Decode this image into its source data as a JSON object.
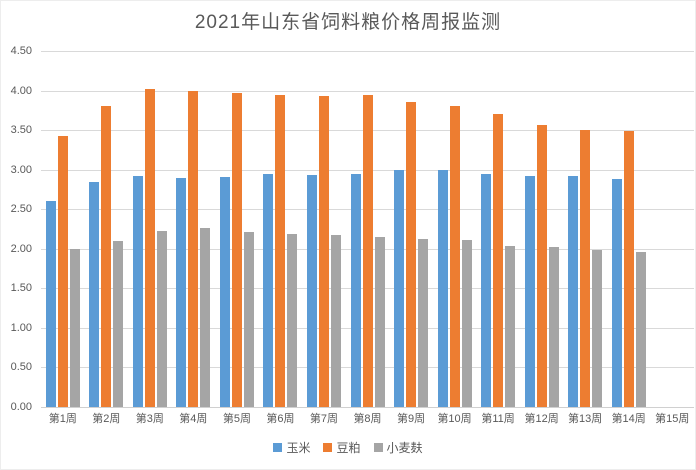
{
  "title": "2021年山东省饲料粮价格周报监测",
  "chart_data": {
    "type": "bar",
    "title": "2021年山东省饲料粮价格周报监测",
    "categories": [
      "第1周",
      "第2周",
      "第3周",
      "第4周",
      "第5周",
      "第6周",
      "第7周",
      "第8周",
      "第9周",
      "第10周",
      "第11周",
      "第12周",
      "第13周",
      "第14周",
      "第15周"
    ],
    "series": [
      {
        "name": "玉米",
        "color": "#5B9BD5",
        "values": [
          2.61,
          2.85,
          2.92,
          2.9,
          2.91,
          2.94,
          2.93,
          2.95,
          3.0,
          3.0,
          2.95,
          2.92,
          2.92,
          2.88,
          null
        ]
      },
      {
        "name": "豆粕",
        "color": "#ED7D31",
        "values": [
          3.43,
          3.8,
          4.02,
          3.99,
          3.97,
          3.94,
          3.93,
          3.95,
          3.85,
          3.81,
          3.7,
          3.57,
          3.5,
          3.49,
          null
        ]
      },
      {
        "name": "小麦麸",
        "color": "#A5A5A5",
        "values": [
          2.0,
          2.1,
          2.23,
          2.26,
          2.21,
          2.19,
          2.17,
          2.15,
          2.12,
          2.11,
          2.04,
          2.02,
          1.98,
          1.96,
          null
        ]
      }
    ],
    "ylim": [
      0,
      4.5
    ],
    "ytick_step": 0.5,
    "ytick_labels": [
      "0.00",
      "0.50",
      "1.00",
      "1.50",
      "2.00",
      "2.50",
      "3.00",
      "3.50",
      "4.00",
      "4.50"
    ],
    "grid": "horizontal",
    "legend_position": "bottom",
    "text_color": "#595959",
    "gridline_color": "#D9D9D9",
    "background": "#FFFFFF"
  }
}
